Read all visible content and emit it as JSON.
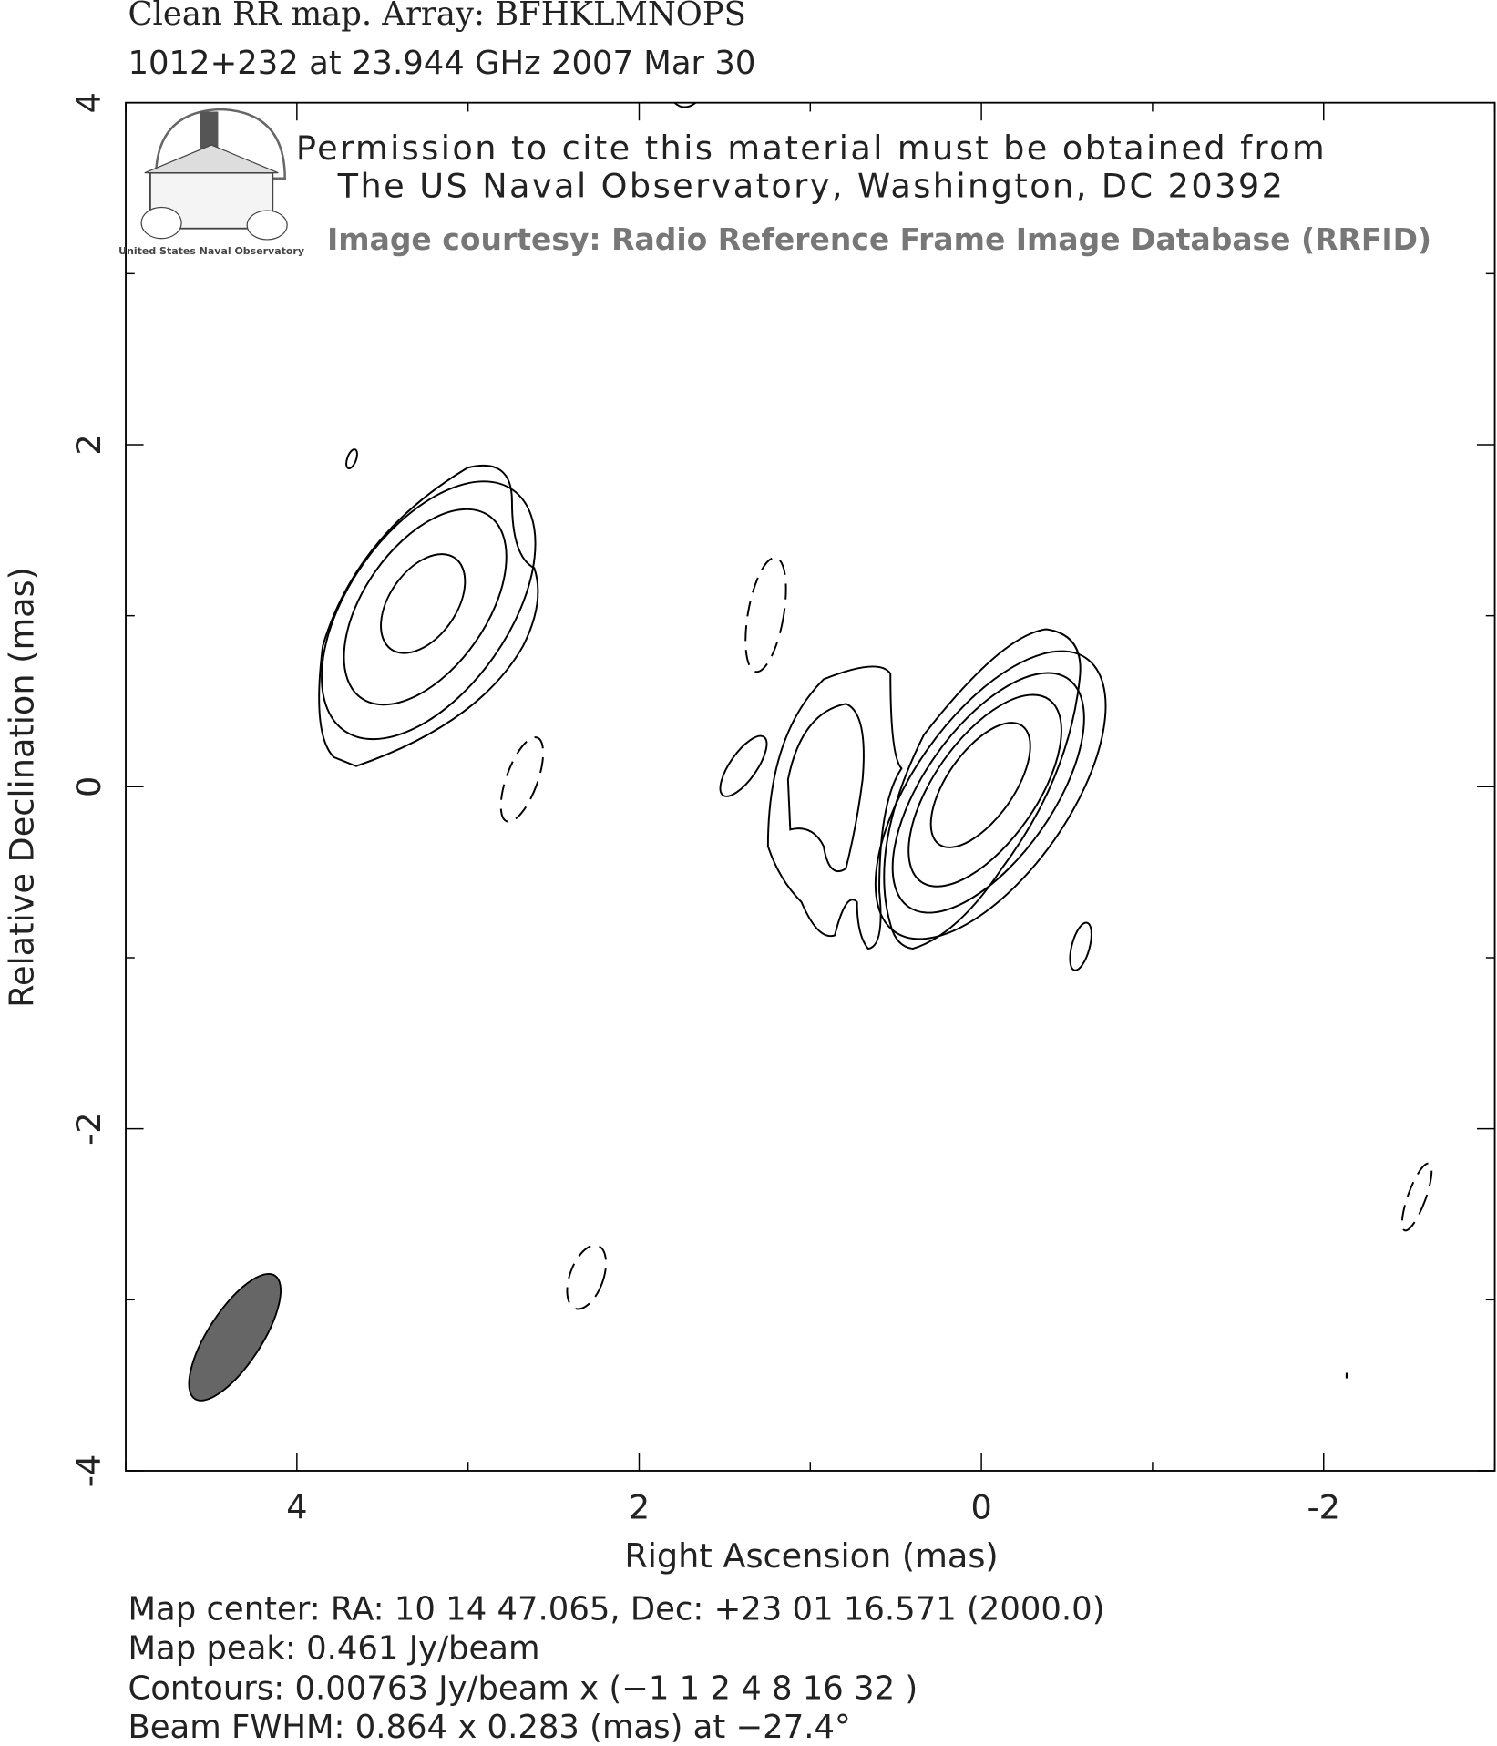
{
  "chart_data": {
    "type": "contour",
    "title": "Clean RR map.  Array:  BFHKLMNOPS",
    "subtitle": "1012+232 at 23.944 GHz 2007 Mar 30",
    "x_label": "Right Ascension  (mas)",
    "y_label": "Relative Declination  (mas)",
    "xlim": [
      5,
      -3
    ],
    "ylim": [
      -4,
      4
    ],
    "xticks": [
      4,
      2,
      0,
      -2
    ],
    "yticks": [
      4,
      2,
      0,
      -2,
      -4
    ],
    "x_minor_ticks": [
      5,
      3,
      1,
      -1,
      -3
    ],
    "y_minor_ticks": [
      3,
      1,
      -1,
      -3
    ],
    "permission": [
      "Permission to cite this material must be obtained from",
      "The US Naval Observatory, Washington, DC 20392"
    ],
    "courtesy": "Image courtesy: Radio Reference Frame Image Database (RRFID)",
    "logo_text": "United States Naval Observatory",
    "footer": [
      "Map center:  RA: 10 14 47.065,  Dec: +23 01 16.571 (2000.0)",
      "Map peak: 0.461 Jy/beam",
      "Contours: 0.00763 Jy/beam x (−1 1 2 4 8 16 32 )",
      "Beam FWHM: 0.864 x 0.283 (mas) at −27.4°"
    ]
  }
}
